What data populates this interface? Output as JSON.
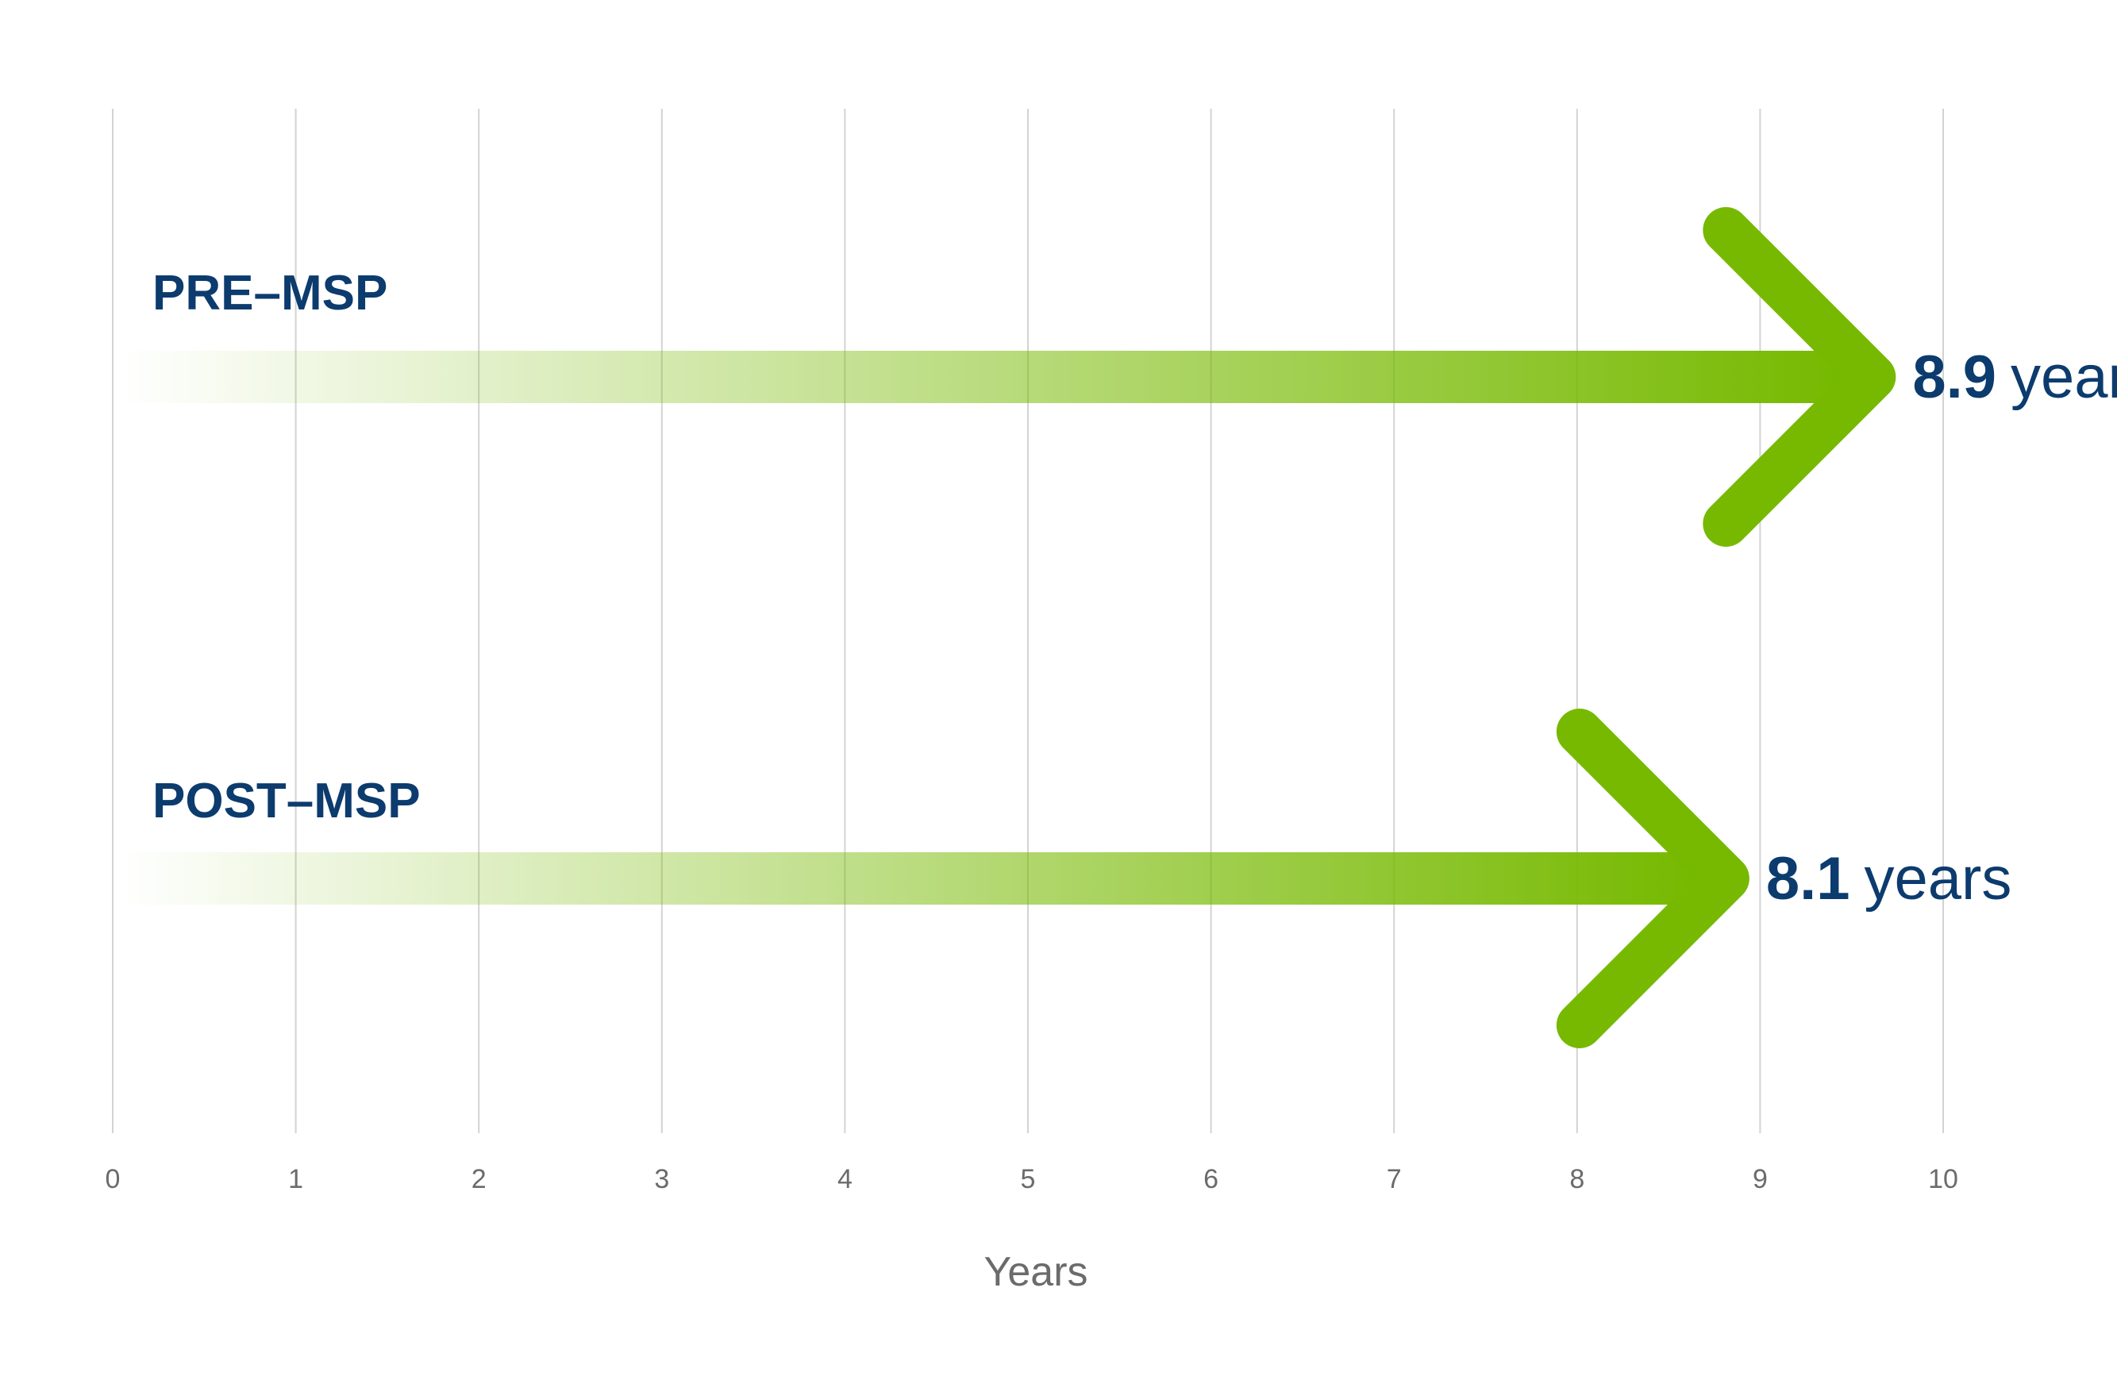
{
  "chart_data": {
    "type": "bar",
    "orientation": "horizontal",
    "categories": [
      "PRE–MSP",
      "POST–MSP"
    ],
    "values": [
      8.9,
      8.1
    ],
    "value_labels": [
      {
        "number": "8.9",
        "unit": "years"
      },
      {
        "number": "8.1",
        "unit": "years"
      }
    ],
    "xlabel": "Years",
    "xlim": [
      0,
      10
    ],
    "xticks": [
      "0",
      "1",
      "2",
      "3",
      "4",
      "5",
      "6",
      "7",
      "8",
      "9",
      "10"
    ],
    "grid": true,
    "legend": "none"
  },
  "colors": {
    "arrow": "#76b900",
    "label": "#0c3b6e",
    "axis_text": "#6b6b6b",
    "grid": "#d3d3d3"
  }
}
